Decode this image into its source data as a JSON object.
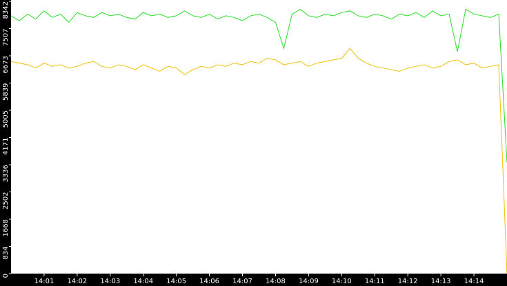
{
  "chart_data": {
    "type": "line",
    "x": [
      840,
      840.25,
      840.5,
      840.75,
      841,
      841.25,
      841.5,
      841.75,
      842,
      842.25,
      842.5,
      842.75,
      843,
      843.25,
      843.5,
      843.75,
      844,
      844.25,
      844.5,
      844.75,
      845,
      845.25,
      845.5,
      845.75,
      846,
      846.25,
      846.5,
      846.75,
      847,
      847.25,
      847.5,
      847.75,
      848,
      848.25,
      848.5,
      848.75,
      849,
      849.25,
      849.5,
      849.75,
      850,
      850.25,
      850.5,
      850.75,
      851,
      851.25,
      851.5,
      851.75,
      852,
      852.25,
      852.5,
      852.75,
      853,
      853.25,
      853.5,
      853.75,
      854,
      854.25,
      854.5,
      854.75,
      855
    ],
    "series": [
      {
        "color": "#22dd22",
        "values": [
          7900,
          7750,
          7950,
          7800,
          8050,
          7850,
          7950,
          7700,
          8000,
          7900,
          7850,
          8000,
          7900,
          7950,
          7850,
          7800,
          8000,
          7900,
          7950,
          7850,
          7900,
          8050,
          7900,
          7850,
          7950,
          7800,
          7900,
          7850,
          7750,
          7900,
          7950,
          7850,
          7700,
          6900,
          7950,
          8100,
          7900,
          7850,
          7950,
          7900,
          8000,
          8050,
          7900,
          7850,
          7950,
          7900,
          7800,
          7950,
          7900,
          8000,
          7850,
          8050,
          7900,
          7950,
          6800,
          8100,
          7950,
          7900,
          7850,
          7950,
          3400
        ]
      },
      {
        "color": "#f0c000",
        "values": [
          6500,
          6450,
          6400,
          6300,
          6450,
          6350,
          6400,
          6300,
          6350,
          6450,
          6500,
          6350,
          6300,
          6400,
          6350,
          6250,
          6400,
          6300,
          6200,
          6350,
          6300,
          6100,
          6250,
          6350,
          6300,
          6400,
          6350,
          6450,
          6400,
          6500,
          6450,
          6600,
          6550,
          6400,
          6450,
          6500,
          6350,
          6450,
          6500,
          6550,
          6600,
          6900,
          6600,
          6450,
          6350,
          6300,
          6250,
          6200,
          6300,
          6350,
          6400,
          6300,
          6350,
          6500,
          6550,
          6400,
          6450,
          6300,
          6350,
          6400,
          0
        ]
      }
    ],
    "xlim": [
      840,
      855
    ],
    "xticks": [
      {
        "value": 841,
        "label": "14:01"
      },
      {
        "value": 842,
        "label": "14:02"
      },
      {
        "value": 843,
        "label": "14:03"
      },
      {
        "value": 844,
        "label": "14:04"
      },
      {
        "value": 845,
        "label": "14:05"
      },
      {
        "value": 846,
        "label": "14:06"
      },
      {
        "value": 847,
        "label": "14:07"
      },
      {
        "value": 848,
        "label": "14:08"
      },
      {
        "value": 849,
        "label": "14:09"
      },
      {
        "value": 850,
        "label": "14:10"
      },
      {
        "value": 851,
        "label": "14:11"
      },
      {
        "value": 852,
        "label": "14:12"
      },
      {
        "value": 853,
        "label": "14:13"
      },
      {
        "value": 854,
        "label": "14:14"
      }
    ],
    "ylim": [
      0,
      8342
    ],
    "yticks": [
      0,
      834,
      1668,
      2502,
      3336,
      4171,
      5005,
      5839,
      6673,
      7507,
      8342
    ]
  }
}
